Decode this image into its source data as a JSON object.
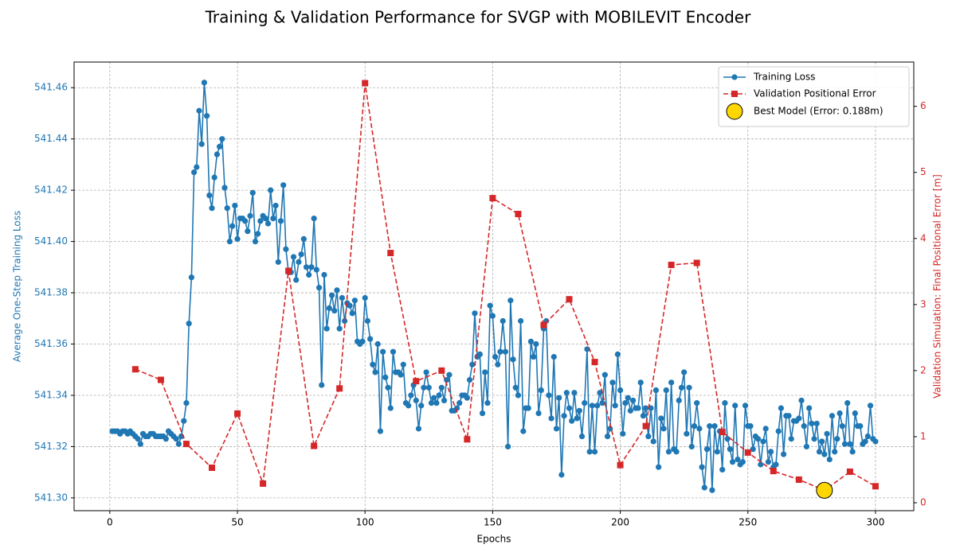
{
  "chart_data": {
    "type": "line",
    "title": "Training & Validation Performance for SVGP with MOBILEVIT Encoder",
    "x_label": "Epochs",
    "y_label": "Average One-Step Training Loss",
    "y2_label": "Validation Simulation: Final Positional Error [m]",
    "xlim": [
      -14,
      315
    ],
    "xticks": [
      0,
      50,
      100,
      150,
      200,
      250,
      300
    ],
    "ylim": [
      541.295,
      541.47
    ],
    "yticks": [
      {
        "value": 541.3,
        "label": "541.30"
      },
      541.32,
      541.34,
      541.36,
      541.38,
      {
        "value": 541.4,
        "label": "541.40"
      },
      541.42,
      541.44,
      541.46
    ],
    "y2lim": [
      -0.12,
      6.67
    ],
    "y2ticks": [
      0,
      1,
      2,
      3,
      4,
      5,
      6
    ],
    "grid": true,
    "legend": "upper right",
    "series": [
      {
        "name": "Training Loss",
        "color": "#1f77b4",
        "axis": "y",
        "marker": "circle",
        "linestyle": "solid",
        "x": [
          1,
          2,
          3,
          4,
          5,
          6,
          7,
          8,
          9,
          10,
          11,
          12,
          13,
          14,
          15,
          16,
          17,
          18,
          19,
          20,
          21,
          22,
          23,
          24,
          25,
          26,
          27,
          28,
          29,
          30,
          31,
          32,
          33,
          34,
          35,
          36,
          37,
          38,
          39,
          40,
          41,
          42,
          43,
          44,
          45,
          46,
          47,
          48,
          49,
          50,
          51,
          52,
          53,
          54,
          55,
          56,
          57,
          58,
          59,
          60,
          61,
          62,
          63,
          64,
          65,
          66,
          67,
          68,
          69,
          70,
          71,
          72,
          73,
          74,
          75,
          76,
          77,
          78,
          79,
          80,
          81,
          82,
          83,
          84,
          85,
          86,
          87,
          88,
          89,
          90,
          91,
          92,
          93,
          94,
          95,
          96,
          97,
          98,
          99,
          100,
          101,
          102,
          103,
          104,
          105,
          106,
          107,
          108,
          109,
          110,
          111,
          112,
          113,
          114,
          115,
          116,
          117,
          118,
          119,
          120,
          121,
          122,
          123,
          124,
          125,
          126,
          127,
          128,
          129,
          130,
          131,
          132,
          133,
          134,
          135,
          136,
          137,
          138,
          139,
          140,
          141,
          142,
          143,
          144,
          145,
          146,
          147,
          148,
          149,
          150,
          151,
          152,
          153,
          154,
          155,
          156,
          157,
          158,
          159,
          160,
          161,
          162,
          163,
          164,
          165,
          166,
          167,
          168,
          169,
          170,
          171,
          172,
          173,
          174,
          175,
          176,
          177,
          178,
          179,
          180,
          181,
          182,
          183,
          184,
          185,
          186,
          187,
          188,
          189,
          190,
          191,
          192,
          193,
          194,
          195,
          196,
          197,
          198,
          199,
          200,
          201,
          202,
          203,
          204,
          205,
          206,
          207,
          208,
          209,
          210,
          211,
          212,
          213,
          214,
          215,
          216,
          217,
          218,
          219,
          220,
          221,
          222,
          223,
          224,
          225,
          226,
          227,
          228,
          229,
          230,
          231,
          232,
          233,
          234,
          235,
          236,
          237,
          238,
          239,
          240,
          241,
          242,
          243,
          244,
          245,
          246,
          247,
          248,
          249,
          250,
          251,
          252,
          253,
          254,
          255,
          256,
          257,
          258,
          259,
          260,
          261,
          262,
          263,
          264,
          265,
          266,
          267,
          268,
          269,
          270,
          271,
          272,
          273,
          274,
          275,
          276,
          277,
          278,
          279,
          280,
          281,
          282,
          283,
          284,
          285,
          286,
          287,
          288,
          289,
          290,
          291,
          292,
          293,
          294,
          295,
          296,
          297,
          298,
          299,
          300
        ],
        "values": [
          541.326,
          541.326,
          541.326,
          541.325,
          541.326,
          541.326,
          541.325,
          541.326,
          541.325,
          541.324,
          541.323,
          541.321,
          541.325,
          541.324,
          541.324,
          541.325,
          541.325,
          541.324,
          541.324,
          541.324,
          541.324,
          541.323,
          541.326,
          541.325,
          541.324,
          541.323,
          541.321,
          541.324,
          541.33,
          541.337,
          541.368,
          541.386,
          541.427,
          541.429,
          541.451,
          541.438,
          541.462,
          541.449,
          541.418,
          541.413,
          541.425,
          541.434,
          541.437,
          541.44,
          541.421,
          541.413,
          541.4,
          541.406,
          541.414,
          541.401,
          541.409,
          541.409,
          541.408,
          541.404,
          541.41,
          541.419,
          541.4,
          541.403,
          541.408,
          541.41,
          541.409,
          541.407,
          541.42,
          541.409,
          541.414,
          541.392,
          541.408,
          541.422,
          541.397,
          541.388,
          541.388,
          541.394,
          541.385,
          541.392,
          541.395,
          541.401,
          541.39,
          541.387,
          541.39,
          541.409,
          541.389,
          541.382,
          541.344,
          541.387,
          541.366,
          541.374,
          541.379,
          541.373,
          541.381,
          541.366,
          541.378,
          541.369,
          541.376,
          541.375,
          541.372,
          541.377,
          541.361,
          541.36,
          541.361,
          541.378,
          541.369,
          541.362,
          541.352,
          541.349,
          541.36,
          541.326,
          541.357,
          541.347,
          541.343,
          541.335,
          541.357,
          541.349,
          541.349,
          541.348,
          541.352,
          541.337,
          541.336,
          541.34,
          541.344,
          541.338,
          541.327,
          541.336,
          541.343,
          541.349,
          541.343,
          541.337,
          541.339,
          541.337,
          541.34,
          541.343,
          541.338,
          541.346,
          541.348,
          541.334,
          541.334,
          541.335,
          541.337,
          541.34,
          541.34,
          541.339,
          541.346,
          541.352,
          541.372,
          541.355,
          541.356,
          541.333,
          541.349,
          541.337,
          541.375,
          541.371,
          541.355,
          541.352,
          541.357,
          541.369,
          541.357,
          541.32,
          541.377,
          541.354,
          541.343,
          541.34,
          541.369,
          541.326,
          541.335,
          541.335,
          541.361,
          541.355,
          541.36,
          541.333,
          541.342,
          541.366,
          541.369,
          541.34,
          541.331,
          541.355,
          541.327,
          541.339,
          541.309,
          541.332,
          541.341,
          541.335,
          541.33,
          541.341,
          541.331,
          541.334,
          541.324,
          541.337,
          541.358,
          541.318,
          541.336,
          541.318,
          541.336,
          541.341,
          541.337,
          541.348,
          541.324,
          541.327,
          541.345,
          541.336,
          541.356,
          541.342,
          541.325,
          541.337,
          541.339,
          541.334,
          541.338,
          541.335,
          541.335,
          541.345,
          541.332,
          541.335,
          541.324,
          541.335,
          541.322,
          541.342,
          541.312,
          541.331,
          541.327,
          541.342,
          541.318,
          541.345,
          541.319,
          541.318,
          541.338,
          541.343,
          541.349,
          541.325,
          541.343,
          541.32,
          541.328,
          541.337,
          541.327,
          541.312,
          541.304,
          541.319,
          541.328,
          541.303,
          541.328,
          541.318,
          541.326,
          541.311,
          541.337,
          541.323,
          541.319,
          541.314,
          541.336,
          541.315,
          541.313,
          541.314,
          541.336,
          541.328,
          541.328,
          541.319,
          541.324,
          541.323,
          541.313,
          541.322,
          541.327,
          541.314,
          541.318,
          541.312,
          541.313,
          541.326,
          541.335,
          541.317,
          541.332,
          541.332,
          541.323,
          541.33,
          541.33,
          541.331,
          541.338,
          541.328,
          541.32,
          541.335,
          541.329,
          541.323,
          541.329,
          541.318,
          541.322,
          541.317,
          541.325,
          541.315,
          541.332,
          541.318,
          541.323,
          541.333,
          541.328,
          541.321,
          541.337,
          541.321,
          541.318,
          541.333,
          541.328,
          541.328,
          541.321,
          541.322,
          541.324,
          541.336,
          541.323,
          541.322
        ]
      },
      {
        "name": "Validation Positional Error",
        "color": "#d62728",
        "axis": "y2",
        "marker": "square",
        "linestyle": "dashed",
        "x": [
          10,
          20,
          30,
          40,
          50,
          60,
          70,
          80,
          90,
          100,
          110,
          120,
          130,
          140,
          150,
          160,
          170,
          180,
          190,
          200,
          210,
          220,
          230,
          240,
          250,
          260,
          270,
          280,
          290,
          300
        ],
        "values": [
          2.02,
          1.86,
          0.89,
          0.53,
          1.35,
          0.29,
          3.51,
          0.86,
          1.73,
          6.35,
          3.78,
          1.84,
          2.0,
          0.96,
          4.61,
          4.37,
          2.69,
          3.08,
          2.13,
          0.57,
          1.16,
          3.6,
          3.63,
          1.07,
          0.76,
          0.48,
          0.35,
          0.188,
          0.47,
          0.25
        ]
      },
      {
        "name": "Best Model (Error: 0.188m)",
        "color": "#ffd700",
        "axis": "y2",
        "marker": "big-circle",
        "linestyle": "none",
        "x": [
          280
        ],
        "values": [
          0.188
        ]
      }
    ]
  }
}
